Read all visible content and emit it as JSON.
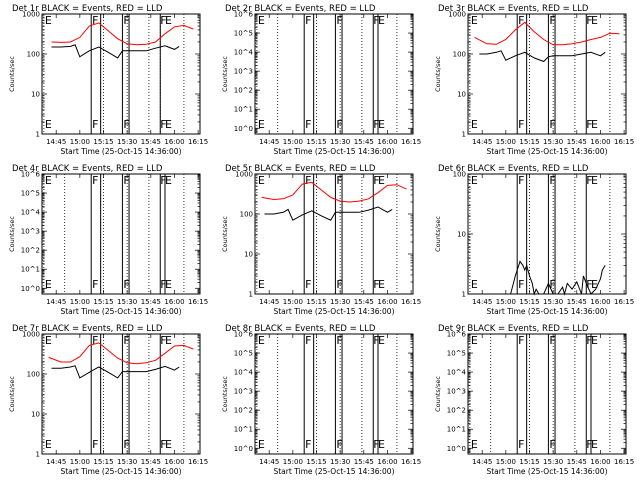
{
  "chart_data": [
    {
      "type": "line",
      "title": "Det 1r BLACK = Events, RED = LLD",
      "xlabel": "Start Time (25-Oct-15 14:36:00)",
      "ylabel": "Counts/sec",
      "xlim": [
        14.6,
        16.27
      ],
      "ylim": [
        1,
        1000
      ],
      "yticks": [
        {
          "v": 1,
          "t": "1"
        },
        {
          "v": 10,
          "t": "10"
        },
        {
          "v": 100,
          "t": "100"
        },
        {
          "v": 1000,
          "t": "1000"
        }
      ],
      "xticks": [
        "14:45",
        "15:00",
        "15:15",
        "15:30",
        "15:45",
        "16:00",
        "16:15"
      ],
      "dotted": [
        14.62,
        15.25,
        15.5,
        15.73,
        15.85,
        16.1
      ],
      "solid": [
        15.12,
        15.22,
        15.45,
        15.52,
        15.85
      ],
      "markers": [
        {
          "t": "E",
          "x": 14.63
        },
        {
          "t": "F",
          "x": 15.13
        },
        {
          "t": "F",
          "x": 15.46
        },
        {
          "t": "F",
          "x": 15.85
        },
        {
          "t": "E",
          "x": 15.9
        }
      ],
      "series": [
        {
          "name": "LLD",
          "color": "#ff0000",
          "x": [
            14.7,
            14.8,
            14.9,
            15.0,
            15.1,
            15.2,
            15.3,
            15.4,
            15.5,
            15.6,
            15.7,
            15.8,
            15.9,
            16.0,
            16.1,
            16.2
          ],
          "y": [
            200,
            195,
            200,
            260,
            500,
            600,
            380,
            240,
            180,
            170,
            175,
            200,
            320,
            480,
            520,
            420
          ]
        },
        {
          "name": "Events",
          "color": "#000000",
          "x": [
            14.7,
            14.8,
            14.9,
            14.95,
            15.0,
            15.1,
            15.2,
            15.3,
            15.4,
            15.45,
            15.5,
            15.6,
            15.7,
            15.8,
            15.9,
            16.0,
            16.05
          ],
          "y": [
            150,
            150,
            155,
            170,
            85,
            120,
            150,
            110,
            80,
            120,
            120,
            120,
            120,
            140,
            160,
            130,
            155
          ]
        }
      ]
    },
    {
      "type": "line",
      "title": "Det 2r BLACK = Events, RED = LLD",
      "xlabel": "Start Time (25-Oct-15 14:36:00)",
      "ylabel": "Counts/sec",
      "xlim": [
        14.6,
        16.27
      ],
      "ylim": [
        0.5,
        1000000.0
      ],
      "yticks": [
        {
          "v": 1,
          "t": "10^0"
        },
        {
          "v": 10,
          "t": "10^1"
        },
        {
          "v": 100,
          "t": "10^2"
        },
        {
          "v": 1000,
          "t": "10^3"
        },
        {
          "v": 10000,
          "t": "10^4"
        },
        {
          "v": 100000,
          "t": "10^5"
        },
        {
          "v": 1000000,
          "t": "10^6"
        }
      ],
      "xticks": [
        "14:45",
        "15:00",
        "15:15",
        "15:30",
        "15:45",
        "16:00",
        "16:15"
      ],
      "dotted": [
        14.62,
        14.84,
        15.25,
        15.5,
        15.73,
        16.1
      ],
      "solid": [
        15.12,
        15.22,
        15.45,
        15.52,
        15.85,
        15.9
      ],
      "markers": [
        {
          "t": "E",
          "x": 14.63
        },
        {
          "t": "F",
          "x": 15.13
        },
        {
          "t": "F",
          "x": 15.46
        },
        {
          "t": "F",
          "x": 15.85
        },
        {
          "t": "E",
          "x": 15.9
        }
      ],
      "series": []
    },
    {
      "type": "line",
      "title": "Det 3r BLACK = Events, RED = LLD",
      "xlabel": "Start Time (25-Oct-15 14:36:00)",
      "ylabel": "Counts/sec",
      "xlim": [
        14.6,
        16.27
      ],
      "ylim": [
        1,
        1000
      ],
      "yticks": [
        {
          "v": 1,
          "t": "1"
        },
        {
          "v": 10,
          "t": "10"
        },
        {
          "v": 100,
          "t": "100"
        },
        {
          "v": 1000,
          "t": "1000"
        }
      ],
      "xticks": [
        "14:45",
        "15:00",
        "15:15",
        "15:30",
        "15:45",
        "16:00",
        "16:15"
      ],
      "dotted": [
        14.62,
        15.25,
        15.5,
        15.73,
        16.1
      ],
      "solid": [
        15.12,
        15.22,
        15.45,
        15.52,
        15.85
      ],
      "markers": [
        {
          "t": "E",
          "x": 14.63
        },
        {
          "t": "F",
          "x": 15.13
        },
        {
          "t": "F",
          "x": 15.46
        },
        {
          "t": "F",
          "x": 15.85
        },
        {
          "t": "E",
          "x": 15.9
        }
      ],
      "series": [
        {
          "name": "LLD",
          "color": "#ff0000",
          "x": [
            14.67,
            14.8,
            14.9,
            15.0,
            15.1,
            15.2,
            15.3,
            15.4,
            15.5,
            15.6,
            15.7,
            15.8,
            15.9,
            16.0,
            16.1,
            16.2
          ],
          "y": [
            260,
            180,
            175,
            230,
            400,
            620,
            360,
            230,
            170,
            170,
            180,
            200,
            230,
            260,
            330,
            320
          ]
        },
        {
          "name": "Events",
          "color": "#000000",
          "x": [
            14.72,
            14.8,
            14.9,
            14.95,
            15.0,
            15.1,
            15.2,
            15.3,
            15.4,
            15.45,
            15.5,
            15.6,
            15.7,
            15.8,
            15.9,
            16.0,
            16.05
          ],
          "y": [
            100,
            100,
            110,
            120,
            70,
            90,
            110,
            80,
            65,
            85,
            90,
            90,
            90,
            100,
            110,
            90,
            110
          ]
        }
      ]
    },
    {
      "type": "line",
      "title": "Det 4r BLACK = Events, RED = LLD",
      "xlabel": "Start Time (25-Oct-15 14:36:00)",
      "ylabel": "Counts/sec",
      "xlim": [
        14.6,
        16.27
      ],
      "ylim": [
        0.5,
        1000000.0
      ],
      "yticks": [
        {
          "v": 1,
          "t": "10^0"
        },
        {
          "v": 10,
          "t": "10^1"
        },
        {
          "v": 100,
          "t": "10^2"
        },
        {
          "v": 1000,
          "t": "10^3"
        },
        {
          "v": 10000,
          "t": "10^4"
        },
        {
          "v": 100000,
          "t": "10^5"
        },
        {
          "v": 1000000,
          "t": "10^6"
        }
      ],
      "xticks": [
        "14:45",
        "15:00",
        "15:15",
        "15:30",
        "15:45",
        "16:00",
        "16:15"
      ],
      "dotted": [
        14.62,
        14.84,
        15.25,
        15.5,
        15.73,
        16.1
      ],
      "solid": [
        15.12,
        15.22,
        15.45,
        15.52,
        15.85,
        15.9
      ],
      "markers": [
        {
          "t": "E",
          "x": 14.63
        },
        {
          "t": "F",
          "x": 15.13
        },
        {
          "t": "F",
          "x": 15.46
        },
        {
          "t": "F",
          "x": 15.85
        },
        {
          "t": "E",
          "x": 15.9
        }
      ],
      "series": []
    },
    {
      "type": "line",
      "title": "Det 5r BLACK = Events, RED = LLD",
      "xlabel": "Start Time (25-Oct-15 14:36:00)",
      "ylabel": "Counts/sec",
      "xlim": [
        14.6,
        16.27
      ],
      "ylim": [
        1,
        1000
      ],
      "yticks": [
        {
          "v": 1,
          "t": "1"
        },
        {
          "v": 10,
          "t": "10"
        },
        {
          "v": 100,
          "t": "100"
        },
        {
          "v": 1000,
          "t": "1000"
        }
      ],
      "xticks": [
        "14:45",
        "15:00",
        "15:15",
        "15:30",
        "15:45",
        "16:00",
        "16:15"
      ],
      "dotted": [
        14.62,
        15.25,
        15.5,
        15.73,
        16.1
      ],
      "solid": [
        15.12,
        15.22,
        15.45,
        15.52,
        15.85
      ],
      "markers": [
        {
          "t": "E",
          "x": 14.63
        },
        {
          "t": "F",
          "x": 15.13
        },
        {
          "t": "F",
          "x": 15.46
        },
        {
          "t": "F",
          "x": 15.85
        },
        {
          "t": "E",
          "x": 15.9
        }
      ],
      "series": [
        {
          "name": "LLD",
          "color": "#ff0000",
          "x": [
            14.67,
            14.8,
            14.9,
            15.0,
            15.1,
            15.2,
            15.3,
            15.4,
            15.5,
            15.6,
            15.7,
            15.8,
            15.9,
            16.0,
            16.1,
            16.2
          ],
          "y": [
            260,
            230,
            240,
            300,
            560,
            620,
            400,
            260,
            210,
            200,
            210,
            240,
            340,
            520,
            540,
            420
          ]
        },
        {
          "name": "Events",
          "color": "#000000",
          "x": [
            14.7,
            14.8,
            14.9,
            14.95,
            15.0,
            15.1,
            15.2,
            15.3,
            15.4,
            15.45,
            15.5,
            15.6,
            15.7,
            15.8,
            15.9,
            16.0,
            16.05
          ],
          "y": [
            100,
            100,
            110,
            130,
            70,
            95,
            120,
            90,
            70,
            110,
            110,
            110,
            110,
            125,
            150,
            110,
            130
          ]
        }
      ]
    },
    {
      "type": "line",
      "title": "Det 6r BLACK = Events, RED = LLD",
      "xlabel": "Start Time (25-Oct-15 14:36:00)",
      "ylabel": "Counts/sec",
      "xlim": [
        14.6,
        16.27
      ],
      "ylim": [
        1,
        100
      ],
      "yticks": [
        {
          "v": 1,
          "t": "1"
        },
        {
          "v": 10,
          "t": "10"
        },
        {
          "v": 100,
          "t": "100"
        }
      ],
      "xticks": [
        "14:45",
        "15:00",
        "15:15",
        "15:30",
        "15:45",
        "16:00",
        "16:15"
      ],
      "dotted": [
        14.62,
        15.25,
        15.5,
        15.73,
        16.1
      ],
      "solid": [
        15.12,
        15.22,
        15.45,
        15.52,
        15.85
      ],
      "markers": [
        {
          "t": "E",
          "x": 14.63
        },
        {
          "t": "F",
          "x": 15.13
        },
        {
          "t": "F",
          "x": 15.46
        },
        {
          "t": "F",
          "x": 15.85
        },
        {
          "t": "E",
          "x": 15.9
        }
      ],
      "series": [
        {
          "name": "Events",
          "color": "#000000",
          "x": [
            15.05,
            15.08,
            15.1,
            15.12,
            15.15,
            15.18,
            15.2,
            15.22,
            15.25,
            15.28,
            15.3,
            15.32,
            15.35,
            15.4,
            15.45,
            15.5,
            15.55,
            15.6,
            15.62,
            15.65,
            15.7,
            15.75,
            15.8,
            15.82,
            15.85,
            15.9,
            15.95,
            16.0,
            16.02,
            16.05
          ],
          "y": [
            1,
            1.5,
            2,
            2.5,
            3.5,
            3,
            2.5,
            3,
            2,
            1.5,
            1,
            1.2,
            1,
            1,
            1.5,
            1,
            1,
            1.3,
            1,
            1.5,
            1.2,
            1.6,
            1,
            2,
            1.5,
            1,
            1.2,
            1.8,
            2.5,
            3
          ]
        }
      ]
    },
    {
      "type": "line",
      "title": "Det 7r BLACK = Events, RED = LLD",
      "xlabel": "Start Time (25-Oct-15 14:36:00)",
      "ylabel": "Counts/sec",
      "xlim": [
        14.6,
        16.27
      ],
      "ylim": [
        1,
        1000
      ],
      "yticks": [
        {
          "v": 1,
          "t": "1"
        },
        {
          "v": 10,
          "t": "10"
        },
        {
          "v": 100,
          "t": "100"
        },
        {
          "v": 1000,
          "t": "1000"
        }
      ],
      "xticks": [
        "14:45",
        "15:00",
        "15:15",
        "15:30",
        "15:45",
        "16:00",
        "16:15"
      ],
      "dotted": [
        14.62,
        15.25,
        15.5,
        15.73,
        16.1
      ],
      "solid": [
        15.12,
        15.22,
        15.45,
        15.52,
        15.85
      ],
      "markers": [
        {
          "t": "E",
          "x": 14.63
        },
        {
          "t": "F",
          "x": 15.13
        },
        {
          "t": "F",
          "x": 15.46
        },
        {
          "t": "F",
          "x": 15.85
        },
        {
          "t": "E",
          "x": 15.9
        }
      ],
      "series": [
        {
          "name": "LLD",
          "color": "#ff0000",
          "x": [
            14.67,
            14.8,
            14.9,
            15.0,
            15.1,
            15.2,
            15.3,
            15.4,
            15.5,
            15.6,
            15.7,
            15.8,
            15.9,
            16.0,
            16.1,
            16.2
          ],
          "y": [
            260,
            200,
            200,
            270,
            520,
            600,
            390,
            250,
            190,
            180,
            190,
            220,
            330,
            500,
            520,
            420
          ]
        },
        {
          "name": "Events",
          "color": "#000000",
          "x": [
            14.7,
            14.8,
            14.9,
            14.95,
            15.0,
            15.1,
            15.2,
            15.3,
            15.4,
            15.45,
            15.5,
            15.6,
            15.7,
            15.8,
            15.9,
            16.0,
            16.05
          ],
          "y": [
            140,
            140,
            150,
            160,
            80,
            110,
            150,
            110,
            80,
            115,
            115,
            115,
            115,
            130,
            155,
            125,
            150
          ]
        }
      ]
    },
    {
      "type": "line",
      "title": "Det 8r BLACK = Events, RED = LLD",
      "xlabel": "Start Time (25-Oct-15 14:36:00)",
      "ylabel": "Counts/sec",
      "xlim": [
        14.6,
        16.27
      ],
      "ylim": [
        0.5,
        1000000.0
      ],
      "yticks": [
        {
          "v": 1,
          "t": "10^0"
        },
        {
          "v": 10,
          "t": "10^1"
        },
        {
          "v": 100,
          "t": "10^2"
        },
        {
          "v": 1000,
          "t": "10^3"
        },
        {
          "v": 10000,
          "t": "10^4"
        },
        {
          "v": 100000,
          "t": "10^5"
        },
        {
          "v": 1000000,
          "t": "10^6"
        }
      ],
      "xticks": [
        "14:45",
        "15:00",
        "15:15",
        "15:30",
        "15:45",
        "16:00",
        "16:15"
      ],
      "dotted": [
        14.62,
        14.84,
        15.25,
        15.5,
        15.73,
        16.1
      ],
      "solid": [
        15.12,
        15.22,
        15.45,
        15.52,
        15.85,
        15.9
      ],
      "markers": [
        {
          "t": "E",
          "x": 14.63
        },
        {
          "t": "F",
          "x": 15.13
        },
        {
          "t": "F",
          "x": 15.46
        },
        {
          "t": "F",
          "x": 15.85
        },
        {
          "t": "E",
          "x": 15.9
        }
      ],
      "series": []
    },
    {
      "type": "line",
      "title": "Det 9r BLACK = Events, RED = LLD",
      "xlabel": "Start Time (25-Oct-15 14:36:00)",
      "ylabel": "Counts/sec",
      "xlim": [
        14.6,
        16.27
      ],
      "ylim": [
        0.5,
        1000000.0
      ],
      "yticks": [
        {
          "v": 1,
          "t": "10^0"
        },
        {
          "v": 10,
          "t": "10^1"
        },
        {
          "v": 100,
          "t": "10^2"
        },
        {
          "v": 1000,
          "t": "10^3"
        },
        {
          "v": 10000,
          "t": "10^4"
        },
        {
          "v": 100000,
          "t": "10^5"
        },
        {
          "v": 1000000,
          "t": "10^6"
        }
      ],
      "xticks": [
        "14:45",
        "15:00",
        "15:15",
        "15:30",
        "15:45",
        "16:00",
        "16:15"
      ],
      "dotted": [
        14.62,
        14.84,
        15.25,
        15.5,
        15.73,
        16.1
      ],
      "solid": [
        15.12,
        15.22,
        15.45,
        15.52,
        15.85,
        15.9
      ],
      "markers": [
        {
          "t": "E",
          "x": 14.63
        },
        {
          "t": "F",
          "x": 15.13
        },
        {
          "t": "F",
          "x": 15.46
        },
        {
          "t": "F",
          "x": 15.85
        },
        {
          "t": "E",
          "x": 15.9
        }
      ],
      "series": []
    }
  ]
}
